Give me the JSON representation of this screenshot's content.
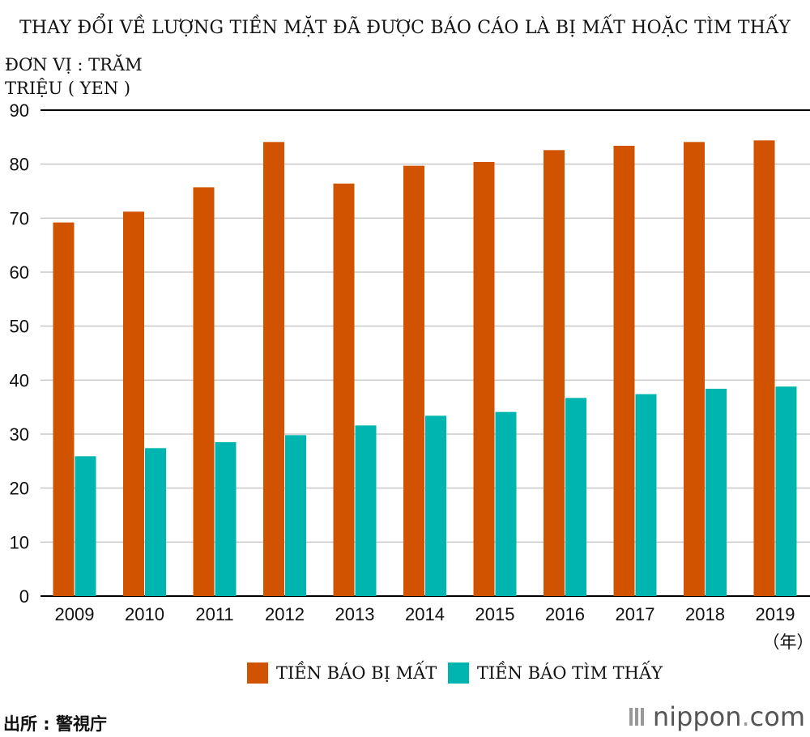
{
  "title": "THAY ĐỔI VỀ LƯỢNG TIỀN MẶT ĐÃ ĐƯỢC BÁO CÁO LÀ BỊ MẤT HOẶC TÌM THẤY",
  "unit_line1": "ĐƠN VỊ : TRĂM",
  "unit_line2": "TRIỆU ( YEN )",
  "source": "出所 : 警視庁",
  "brand": {
    "name": "nippon",
    "dot": ".",
    "tld": "com"
  },
  "colors": {
    "lost": "#d15300",
    "found": "#00b5b0",
    "grid": "#c8c8c8",
    "axis": "#000000"
  },
  "chart_data": {
    "type": "bar",
    "title": "THAY ĐỔI VỀ LƯỢNG TIỀN MẶT ĐÃ ĐƯỢC BÁO CÁO LÀ BỊ MẤT HOẶC TÌM THẤY",
    "categories": [
      "2009",
      "2010",
      "2011",
      "2012",
      "2013",
      "2014",
      "2015",
      "2016",
      "2017",
      "2018",
      "2019"
    ],
    "x_unit_label": "（年）",
    "series": [
      {
        "name": "TIỀN BÁO BỊ MẤT",
        "color": "#d15300",
        "values": [
          69.2,
          71.2,
          75.7,
          84.1,
          76.4,
          79.7,
          80.4,
          82.6,
          83.4,
          84.1,
          84.4
        ]
      },
      {
        "name": "TIỀN BÁO TÌM THẤY",
        "color": "#00b5b0",
        "values": [
          25.9,
          27.4,
          28.5,
          29.8,
          31.6,
          33.4,
          34.1,
          36.7,
          37.4,
          38.4,
          38.8
        ]
      }
    ],
    "ylim": [
      0,
      90
    ],
    "yticks": [
      0,
      10,
      20,
      30,
      40,
      50,
      60,
      70,
      80,
      90
    ],
    "grid": true,
    "legend_position": "bottom-center"
  }
}
